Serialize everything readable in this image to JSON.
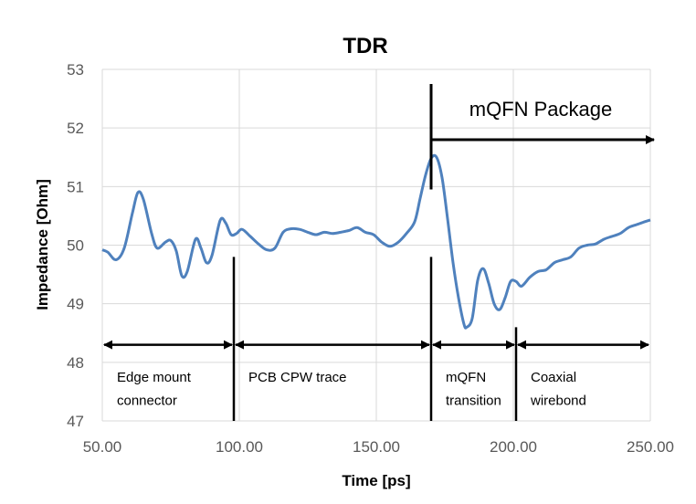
{
  "chart_data": {
    "type": "line",
    "title": "TDR",
    "xlabel": "Time [ps]",
    "ylabel": "Impedance [Ohm]",
    "xlim": [
      50,
      250
    ],
    "ylim": [
      47,
      53
    ],
    "x_ticks": [
      "50.00",
      "100.00",
      "150.00",
      "200.00",
      "250.00"
    ],
    "y_ticks": [
      "47",
      "48",
      "49",
      "50",
      "51",
      "52",
      "53"
    ],
    "grid": true,
    "series_color": "#4f81bd",
    "series": [
      {
        "x": [
          50,
          52,
          55,
          58,
          61,
          63,
          65,
          68,
          70,
          73,
          75,
          77,
          79,
          81,
          84,
          86,
          88,
          90,
          93,
          95,
          97,
          99,
          101,
          104,
          107,
          110,
          113,
          116,
          119,
          122,
          125,
          128,
          131,
          134,
          137,
          140,
          143,
          146,
          149,
          152,
          155,
          158,
          161,
          164,
          166,
          168,
          170,
          172,
          174,
          176,
          178,
          180,
          182,
          183,
          185,
          187,
          189,
          191,
          193,
          195,
          197,
          199,
          201,
          203,
          206,
          209,
          212,
          215,
          218,
          221,
          224,
          227,
          230,
          233,
          236,
          239,
          242,
          245,
          248,
          250
        ],
        "y": [
          49.92,
          49.88,
          49.75,
          49.95,
          50.55,
          50.9,
          50.78,
          50.2,
          49.95,
          50.05,
          50.08,
          49.9,
          49.48,
          49.55,
          50.1,
          49.95,
          49.7,
          49.82,
          50.42,
          50.38,
          50.18,
          50.2,
          50.27,
          50.15,
          50.02,
          49.92,
          49.95,
          50.22,
          50.28,
          50.27,
          50.22,
          50.18,
          50.22,
          50.2,
          50.22,
          50.25,
          50.3,
          50.22,
          50.18,
          50.05,
          49.98,
          50.05,
          50.2,
          50.4,
          50.8,
          51.2,
          51.48,
          51.5,
          51.15,
          50.45,
          49.7,
          49.1,
          48.65,
          48.6,
          48.75,
          49.4,
          49.6,
          49.35,
          49.0,
          48.9,
          49.1,
          49.38,
          49.38,
          49.3,
          49.45,
          49.55,
          49.58,
          49.7,
          49.75,
          49.8,
          49.95,
          50.0,
          50.02,
          50.1,
          50.15,
          50.2,
          50.3,
          50.35,
          50.4,
          50.43
        ]
      }
    ],
    "annotations": {
      "package_label": "mQFN Package",
      "package_range": [
        170,
        250
      ],
      "package_marker_x": 170,
      "package_marker_y": [
        50.95,
        52.75
      ],
      "package_arrow_y": 51.8,
      "region_arrow_y": 48.3,
      "region_label_y": [
        47.75,
        47.35
      ],
      "regions": [
        {
          "range": [
            50,
            98
          ],
          "line1": "Edge mount",
          "line2": "connector",
          "divider_x": 98,
          "divider_top": 49.8
        },
        {
          "range": [
            98,
            170
          ],
          "line1": "PCB CPW trace",
          "line2": "",
          "divider_x": 170,
          "divider_top": 49.8
        },
        {
          "range": [
            170,
            201
          ],
          "line1": "mQFN",
          "line2": "transition",
          "divider_x": 201,
          "divider_top": 48.6
        },
        {
          "range": [
            201,
            250
          ],
          "line1": "Coaxial",
          "line2": "wirebond"
        }
      ]
    }
  }
}
